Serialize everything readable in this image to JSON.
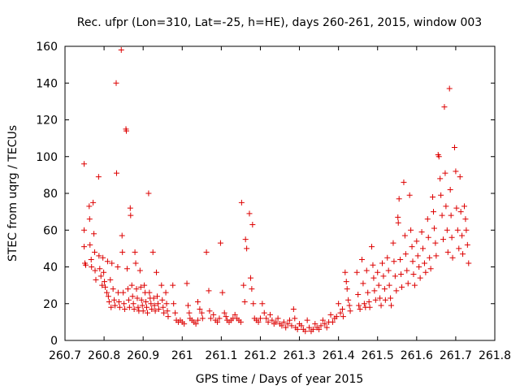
{
  "chart_data": {
    "type": "scatter",
    "title": "Rec. ufpr (Lon=310, Lat=-25, h=HE), days 260-261, 2015, window 003",
    "xlabel": "GPS time / Days of year 2015",
    "ylabel": "STEC from uqrg / TECUs",
    "xlim": [
      260.7,
      261.8
    ],
    "ylim": [
      0,
      160
    ],
    "xticks": [
      260.7,
      260.8,
      260.9,
      261.0,
      261.1,
      261.2,
      261.3,
      261.4,
      261.5,
      261.6,
      261.7,
      261.8
    ],
    "xtick_labels": [
      "260.7",
      "260.8",
      "260.9",
      "261",
      "261.1",
      "261.2",
      "261.3",
      "261.4",
      "261.5",
      "261.6",
      "261.7",
      "261.8"
    ],
    "yticks": [
      0,
      20,
      40,
      60,
      80,
      100,
      120,
      140,
      160
    ],
    "ytick_labels": [
      "0",
      "20",
      "40",
      "60",
      "80",
      "100",
      "120",
      "140",
      "160"
    ],
    "grid": false,
    "marker": "plus",
    "color": "#dd0000",
    "points": [
      [
        260.749,
        96
      ],
      [
        260.749,
        60
      ],
      [
        260.749,
        51
      ],
      [
        260.751,
        42
      ],
      [
        260.753,
        41
      ],
      [
        260.762,
        73
      ],
      [
        260.763,
        66
      ],
      [
        260.764,
        52
      ],
      [
        260.767,
        44
      ],
      [
        260.768,
        40
      ],
      [
        260.772,
        75
      ],
      [
        260.774,
        58
      ],
      [
        260.776,
        48
      ],
      [
        260.777,
        38
      ],
      [
        260.779,
        33
      ],
      [
        260.786,
        89
      ],
      [
        260.787,
        46
      ],
      [
        260.789,
        39
      ],
      [
        260.792,
        35
      ],
      [
        260.795,
        30
      ],
      [
        260.797,
        45
      ],
      [
        260.799,
        37
      ],
      [
        260.801,
        32
      ],
      [
        260.803,
        29
      ],
      [
        260.807,
        26
      ],
      [
        260.809,
        43
      ],
      [
        260.811,
        24
      ],
      [
        260.813,
        21
      ],
      [
        260.816,
        33
      ],
      [
        260.818,
        18
      ],
      [
        260.82,
        42
      ],
      [
        260.823,
        28
      ],
      [
        260.826,
        22
      ],
      [
        260.828,
        19
      ],
      [
        260.831,
        140
      ],
      [
        260.832,
        91
      ],
      [
        260.835,
        40
      ],
      [
        260.836,
        26
      ],
      [
        260.838,
        21
      ],
      [
        260.84,
        18
      ],
      [
        260.844,
        158
      ],
      [
        260.846,
        57
      ],
      [
        260.847,
        48
      ],
      [
        260.849,
        26
      ],
      [
        260.851,
        20
      ],
      [
        260.853,
        17
      ],
      [
        260.856,
        115
      ],
      [
        260.857,
        114
      ],
      [
        260.859,
        39
      ],
      [
        260.861,
        28
      ],
      [
        260.863,
        22
      ],
      [
        260.865,
        18
      ],
      [
        260.867,
        72
      ],
      [
        260.868,
        68
      ],
      [
        260.871,
        30
      ],
      [
        260.873,
        24
      ],
      [
        260.875,
        20
      ],
      [
        260.877,
        17
      ],
      [
        260.879,
        48
      ],
      [
        260.881,
        42
      ],
      [
        260.883,
        28
      ],
      [
        260.885,
        23
      ],
      [
        260.887,
        18
      ],
      [
        260.889,
        16
      ],
      [
        260.892,
        38
      ],
      [
        260.894,
        29
      ],
      [
        260.896,
        22
      ],
      [
        260.898,
        19
      ],
      [
        260.9,
        16
      ],
      [
        260.903,
        30
      ],
      [
        260.905,
        26
      ],
      [
        260.907,
        21
      ],
      [
        260.909,
        18
      ],
      [
        260.911,
        15
      ],
      [
        260.914,
        80
      ],
      [
        260.916,
        26
      ],
      [
        260.918,
        23
      ],
      [
        260.92,
        20
      ],
      [
        260.922,
        17
      ],
      [
        260.925,
        48
      ],
      [
        260.927,
        23
      ],
      [
        260.929,
        19
      ],
      [
        260.931,
        16
      ],
      [
        260.934,
        37
      ],
      [
        260.936,
        24
      ],
      [
        260.938,
        20
      ],
      [
        260.94,
        17
      ],
      [
        260.947,
        30
      ],
      [
        260.949,
        22
      ],
      [
        260.951,
        18
      ],
      [
        260.953,
        15
      ],
      [
        260.958,
        26
      ],
      [
        260.96,
        20
      ],
      [
        260.962,
        16
      ],
      [
        260.964,
        13
      ],
      [
        260.976,
        30
      ],
      [
        260.978,
        20
      ],
      [
        260.982,
        15
      ],
      [
        260.985,
        11
      ],
      [
        260.99,
        10
      ],
      [
        260.995,
        11
      ],
      [
        261.0,
        10
      ],
      [
        261.005,
        9
      ],
      [
        261.012,
        31
      ],
      [
        261.015,
        19
      ],
      [
        261.018,
        15
      ],
      [
        261.02,
        12
      ],
      [
        261.025,
        11
      ],
      [
        261.03,
        10
      ],
      [
        261.035,
        9
      ],
      [
        261.04,
        11
      ],
      [
        261.04,
        21
      ],
      [
        261.045,
        17
      ],
      [
        261.05,
        15
      ],
      [
        261.052,
        12
      ],
      [
        261.062,
        48
      ],
      [
        261.068,
        27
      ],
      [
        261.07,
        16
      ],
      [
        261.073,
        12
      ],
      [
        261.08,
        14
      ],
      [
        261.085,
        11
      ],
      [
        261.09,
        10
      ],
      [
        261.095,
        12
      ],
      [
        261.098,
        53
      ],
      [
        261.103,
        26
      ],
      [
        261.108,
        15
      ],
      [
        261.112,
        13
      ],
      [
        261.115,
        11
      ],
      [
        261.12,
        10
      ],
      [
        261.125,
        11
      ],
      [
        261.13,
        12
      ],
      [
        261.135,
        14
      ],
      [
        261.14,
        12
      ],
      [
        261.145,
        11
      ],
      [
        261.15,
        10
      ],
      [
        261.152,
        75
      ],
      [
        261.157,
        30
      ],
      [
        261.16,
        21
      ],
      [
        261.162,
        55
      ],
      [
        261.165,
        50
      ],
      [
        261.172,
        69
      ],
      [
        261.175,
        34
      ],
      [
        261.178,
        28
      ],
      [
        261.18,
        63
      ],
      [
        261.182,
        20
      ],
      [
        261.185,
        12
      ],
      [
        261.19,
        11
      ],
      [
        261.195,
        10
      ],
      [
        261.2,
        12
      ],
      [
        261.205,
        20
      ],
      [
        261.21,
        15
      ],
      [
        261.215,
        12
      ],
      [
        261.22,
        10
      ],
      [
        261.225,
        14
      ],
      [
        261.23,
        11
      ],
      [
        261.235,
        9
      ],
      [
        261.24,
        10
      ],
      [
        261.245,
        12
      ],
      [
        261.25,
        9
      ],
      [
        261.255,
        8
      ],
      [
        261.26,
        10
      ],
      [
        261.265,
        7
      ],
      [
        261.27,
        9
      ],
      [
        261.275,
        11
      ],
      [
        261.28,
        8
      ],
      [
        261.285,
        17
      ],
      [
        261.288,
        12
      ],
      [
        261.29,
        7
      ],
      [
        261.295,
        6
      ],
      [
        261.3,
        9
      ],
      [
        261.305,
        8
      ],
      [
        261.31,
        6
      ],
      [
        261.315,
        5
      ],
      [
        261.32,
        11
      ],
      [
        261.325,
        7
      ],
      [
        261.33,
        5
      ],
      [
        261.335,
        6
      ],
      [
        261.34,
        9
      ],
      [
        261.345,
        7
      ],
      [
        261.35,
        6
      ],
      [
        261.355,
        8
      ],
      [
        261.36,
        11
      ],
      [
        261.365,
        9
      ],
      [
        261.37,
        7
      ],
      [
        261.375,
        10
      ],
      [
        261.38,
        14
      ],
      [
        261.385,
        10
      ],
      [
        261.39,
        12
      ],
      [
        261.395,
        13
      ],
      [
        261.4,
        20
      ],
      [
        261.405,
        15
      ],
      [
        261.41,
        17
      ],
      [
        261.412,
        13
      ],
      [
        261.417,
        37
      ],
      [
        261.42,
        32
      ],
      [
        261.422,
        28
      ],
      [
        261.425,
        22
      ],
      [
        261.428,
        19
      ],
      [
        261.43,
        16
      ],
      [
        261.447,
        37
      ],
      [
        261.45,
        25
      ],
      [
        261.452,
        19
      ],
      [
        261.455,
        17
      ],
      [
        261.46,
        44
      ],
      [
        261.463,
        31
      ],
      [
        261.466,
        20
      ],
      [
        261.469,
        18
      ],
      [
        261.472,
        38
      ],
      [
        261.475,
        26
      ],
      [
        261.478,
        21
      ],
      [
        261.48,
        18
      ],
      [
        261.485,
        51
      ],
      [
        261.488,
        41
      ],
      [
        261.49,
        34
      ],
      [
        261.492,
        27
      ],
      [
        261.495,
        22
      ],
      [
        261.5,
        37
      ],
      [
        261.503,
        30
      ],
      [
        261.506,
        23
      ],
      [
        261.509,
        19
      ],
      [
        261.512,
        42
      ],
      [
        261.515,
        35
      ],
      [
        261.518,
        28
      ],
      [
        261.52,
        22
      ],
      [
        261.525,
        45
      ],
      [
        261.528,
        38
      ],
      [
        261.53,
        30
      ],
      [
        261.533,
        23
      ],
      [
        261.535,
        19
      ],
      [
        261.54,
        53
      ],
      [
        261.542,
        43
      ],
      [
        261.545,
        35
      ],
      [
        261.548,
        27
      ],
      [
        261.552,
        67
      ],
      [
        261.553,
        64
      ],
      [
        261.555,
        77
      ],
      [
        261.558,
        44
      ],
      [
        261.56,
        36
      ],
      [
        261.562,
        29
      ],
      [
        261.567,
        86
      ],
      [
        261.57,
        57
      ],
      [
        261.572,
        47
      ],
      [
        261.575,
        38
      ],
      [
        261.578,
        31
      ],
      [
        261.582,
        79
      ],
      [
        261.585,
        60
      ],
      [
        261.588,
        51
      ],
      [
        261.59,
        43
      ],
      [
        261.592,
        36
      ],
      [
        261.595,
        30
      ],
      [
        261.6,
        54
      ],
      [
        261.603,
        46
      ],
      [
        261.606,
        40
      ],
      [
        261.609,
        34
      ],
      [
        261.613,
        59
      ],
      [
        261.616,
        50
      ],
      [
        261.62,
        42
      ],
      [
        261.623,
        37
      ],
      [
        261.628,
        66
      ],
      [
        261.63,
        56
      ],
      [
        261.633,
        45
      ],
      [
        261.636,
        39
      ],
      [
        261.641,
        78
      ],
      [
        261.643,
        70
      ],
      [
        261.645,
        61
      ],
      [
        261.648,
        53
      ],
      [
        261.65,
        46
      ],
      [
        261.655,
        101
      ],
      [
        261.657,
        100
      ],
      [
        261.66,
        88
      ],
      [
        261.662,
        79
      ],
      [
        261.665,
        68
      ],
      [
        261.668,
        55
      ],
      [
        261.671,
        127
      ],
      [
        261.673,
        91
      ],
      [
        261.675,
        73
      ],
      [
        261.678,
        60
      ],
      [
        261.68,
        48
      ],
      [
        261.684,
        137
      ],
      [
        261.686,
        82
      ],
      [
        261.688,
        68
      ],
      [
        261.69,
        56
      ],
      [
        261.692,
        45
      ],
      [
        261.697,
        105
      ],
      [
        261.7,
        92
      ],
      [
        261.702,
        72
      ],
      [
        261.705,
        60
      ],
      [
        261.708,
        50
      ],
      [
        261.711,
        89
      ],
      [
        261.713,
        70
      ],
      [
        261.716,
        57
      ],
      [
        261.718,
        47
      ],
      [
        261.722,
        73
      ],
      [
        261.725,
        66
      ],
      [
        261.727,
        60
      ],
      [
        261.73,
        52
      ],
      [
        261.733,
        42
      ]
    ]
  }
}
